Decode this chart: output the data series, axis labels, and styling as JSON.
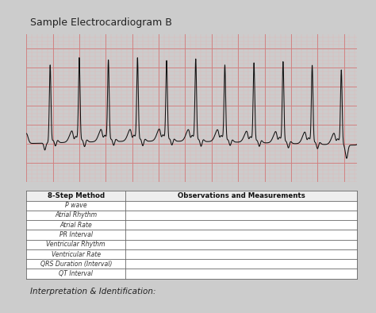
{
  "title": "Sample Electrocardiogram B",
  "title_fontsize": 9,
  "ecg_bg_color": "#f2d0d0",
  "ecg_grid_minor_color": "#e8b0b0",
  "ecg_grid_major_color": "#d08080",
  "ecg_line_color": "#111111",
  "page_bg_color": "#cccccc",
  "table_header_row": [
    "8-Step Method",
    "Observations and Measurements"
  ],
  "table_rows": [
    "P wave",
    "Atrial Rhythm",
    "Atrial Rate",
    "PR Interval",
    "Ventricular Rhythm",
    "Ventricular Rate",
    "QRS Duration (Interval)",
    "QT Interval"
  ],
  "footer_text": "Interpretation & Identification:",
  "footer_fontsize": 7.5,
  "col_split": 0.3
}
